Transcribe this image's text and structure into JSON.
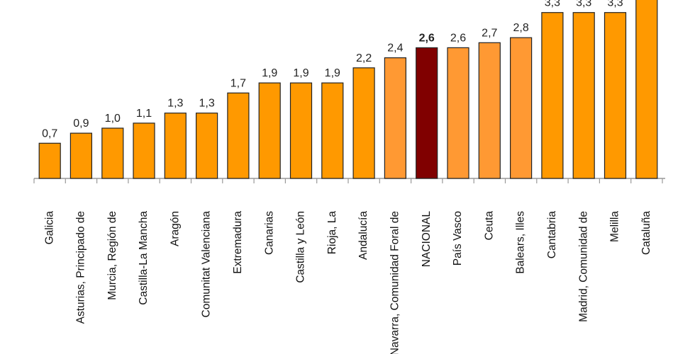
{
  "chart_data": {
    "type": "bar",
    "categories": [
      "Galicia",
      "Asturias, Principado de",
      "Murcia, Región de",
      "Castilla-La Mancha",
      "Aragón",
      "Comunitat Valenciana",
      "Extremadura",
      "Canarias",
      "Castilla y León",
      "Rioja, La",
      "Andalucía",
      "Navarra, Comunidad Foral de",
      "NACIONAL",
      "País Vasco",
      "Ceuta",
      "Balears, Illes",
      "Cantabria",
      "Madrid, Comunidad de",
      "Melilla",
      "Cataluña"
    ],
    "values": [
      0.7,
      0.9,
      1.0,
      1.1,
      1.3,
      1.3,
      1.7,
      1.9,
      1.9,
      1.9,
      2.2,
      2.4,
      2.6,
      2.6,
      2.7,
      2.8,
      3.3,
      3.3,
      3.3,
      3.7
    ],
    "value_labels": [
      "0,7",
      "0,9",
      "1,0",
      "1,1",
      "1,3",
      "1,3",
      "1,7",
      "1,9",
      "1,9",
      "1,9",
      "2,2",
      "2,4",
      "2,6",
      "2,6",
      "2,7",
      "2,8",
      "3,3",
      "3,3",
      "3,3",
      ""
    ],
    "highlight_category": "NACIONAL",
    "colors": {
      "default": "#ff9900",
      "above_national": "#ff9933",
      "national": "#800000",
      "outline": "#222222"
    },
    "title": "",
    "xlabel": "",
    "ylabel": "",
    "grid": false,
    "legend": "none"
  }
}
